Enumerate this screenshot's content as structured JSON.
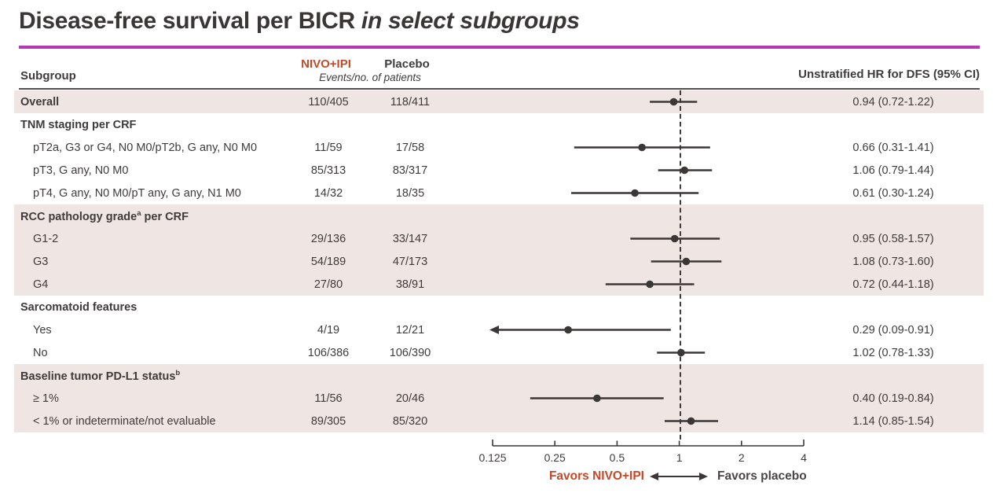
{
  "title": {
    "main": "Disease-free survival per BICR ",
    "emphasis": "in select subgroups"
  },
  "header": {
    "subgroup": "Subgroup",
    "arm1": "NIVO+IPI",
    "arm2": "Placebo",
    "events_caption": "Events/no. of patients",
    "hr": "Unstratified HR for DFS (95% CI)"
  },
  "footer": {
    "favors_left": "Favors NIVO+IPI",
    "favors_right": "Favors placebo"
  },
  "colors": {
    "accent_line": "#b43ab8",
    "nivo_accent": "#c14a28",
    "text_dark": "#3f3b3b",
    "row_shade": "#efe5e3",
    "marker": "#3c3737"
  },
  "chart_data": {
    "type": "forest",
    "x_scale": "log2",
    "x_min": 0.125,
    "x_max": 4,
    "x_ticks": [
      0.125,
      0.25,
      0.5,
      1,
      2,
      4
    ],
    "x_tick_labels": [
      "0.125",
      "0.25",
      "0.5",
      "1",
      "2",
      "4"
    ],
    "reference_line": 1,
    "rows": [
      {
        "kind": "item",
        "bold": true,
        "indent": false,
        "shaded": true,
        "label": "Overall",
        "nivo": "110/405",
        "placebo": "118/411",
        "hr": 0.94,
        "lo": 0.72,
        "hi": 1.22,
        "hr_text": "0.94 (0.72-1.22)"
      },
      {
        "kind": "section",
        "shaded": false,
        "label": "TNM staging per CRF"
      },
      {
        "kind": "item",
        "indent": true,
        "shaded": false,
        "label": "pT2a, G3 or G4, N0 M0/pT2b, G any, N0 M0",
        "nivo": "11/59",
        "placebo": "17/58",
        "hr": 0.66,
        "lo": 0.31,
        "hi": 1.41,
        "hr_text": "0.66 (0.31-1.41)"
      },
      {
        "kind": "item",
        "indent": true,
        "shaded": false,
        "label": "pT3, G any, N0 M0",
        "nivo": "85/313",
        "placebo": "83/317",
        "hr": 1.06,
        "lo": 0.79,
        "hi": 1.44,
        "hr_text": "1.06 (0.79-1.44)"
      },
      {
        "kind": "item",
        "indent": true,
        "shaded": false,
        "label": "pT4, G any, N0 M0/pT any, G any, N1 M0",
        "nivo": "14/32",
        "placebo": "18/35",
        "hr": 0.61,
        "lo": 0.3,
        "hi": 1.24,
        "hr_text": "0.61 (0.30-1.24)"
      },
      {
        "kind": "section",
        "shaded": true,
        "label": "RCC pathology grade",
        "sup": "a",
        "label_cont": " per CRF"
      },
      {
        "kind": "item",
        "indent": true,
        "shaded": true,
        "label": "G1-2",
        "nivo": "29/136",
        "placebo": "33/147",
        "hr": 0.95,
        "lo": 0.58,
        "hi": 1.57,
        "hr_text": "0.95 (0.58-1.57)"
      },
      {
        "kind": "item",
        "indent": true,
        "shaded": true,
        "label": "G3",
        "nivo": "54/189",
        "placebo": "47/173",
        "hr": 1.08,
        "lo": 0.73,
        "hi": 1.6,
        "hr_text": "1.08 (0.73-1.60)"
      },
      {
        "kind": "item",
        "indent": true,
        "shaded": true,
        "label": "G4",
        "nivo": "27/80",
        "placebo": "38/91",
        "hr": 0.72,
        "lo": 0.44,
        "hi": 1.18,
        "hr_text": "0.72 (0.44-1.18)"
      },
      {
        "kind": "section",
        "shaded": false,
        "label": "Sarcomatoid features"
      },
      {
        "kind": "item",
        "indent": true,
        "shaded": false,
        "label": "Yes",
        "nivo": "4/19",
        "placebo": "12/21",
        "hr": 0.29,
        "lo": 0.09,
        "hi": 0.91,
        "hr_text": "0.29 (0.09-0.91)"
      },
      {
        "kind": "item",
        "indent": true,
        "shaded": false,
        "label": "No",
        "nivo": "106/386",
        "placebo": "106/390",
        "hr": 1.02,
        "lo": 0.78,
        "hi": 1.33,
        "hr_text": "1.02 (0.78-1.33)"
      },
      {
        "kind": "section",
        "shaded": true,
        "label": "Baseline tumor PD-L1 status",
        "sup": "b"
      },
      {
        "kind": "item",
        "indent": true,
        "shaded": true,
        "label": "≥ 1%",
        "nivo": "11/56",
        "placebo": "20/46",
        "hr": 0.4,
        "lo": 0.19,
        "hi": 0.84,
        "hr_text": "0.40 (0.19-0.84)"
      },
      {
        "kind": "item",
        "indent": true,
        "shaded": true,
        "label": "< 1% or indeterminate/not evaluable",
        "nivo": "89/305",
        "placebo": "85/320",
        "hr": 1.14,
        "lo": 0.85,
        "hi": 1.54,
        "hr_text": "1.14 (0.85-1.54)"
      }
    ]
  }
}
